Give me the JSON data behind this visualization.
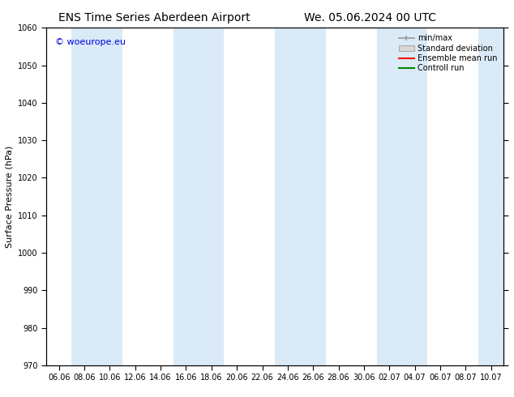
{
  "title_left": "ENS Time Series Aberdeen Airport",
  "title_right": "We. 05.06.2024 00 UTC",
  "ylabel": "Surface Pressure (hPa)",
  "ylim": [
    970,
    1060
  ],
  "yticks": [
    970,
    980,
    990,
    1000,
    1010,
    1020,
    1030,
    1040,
    1050,
    1060
  ],
  "xlabel_dates": [
    "06.06",
    "08.06",
    "10.06",
    "12.06",
    "14.06",
    "16.06",
    "18.06",
    "20.06",
    "22.06",
    "24.06",
    "26.06",
    "28.06",
    "30.06",
    "02.07",
    "04.07",
    "06.07",
    "08.07",
    "10.07"
  ],
  "background_color": "#ffffff",
  "plot_bg_color": "#ffffff",
  "band_color": "#daeaf7",
  "copyright_text": "© woeurope.eu",
  "copyright_color": "#0000dd",
  "legend_minmax_color": "#999999",
  "legend_stddev_color": "#cccccc",
  "legend_ensemble_color": "#ff0000",
  "legend_control_color": "#008800",
  "title_fontsize": 10,
  "ylabel_fontsize": 8,
  "tick_fontsize": 7,
  "copyright_fontsize": 8,
  "legend_fontsize": 7
}
